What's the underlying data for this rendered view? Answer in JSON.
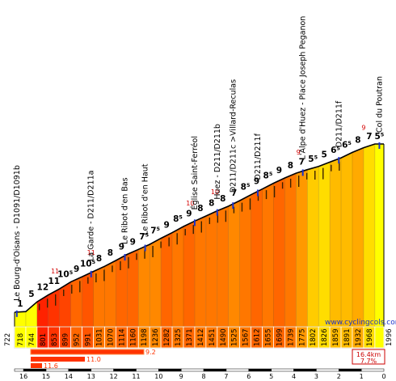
{
  "chart_data": {
    "type": "area",
    "title": "",
    "xlabel": "",
    "ylabel": "",
    "x_direction": "descending",
    "xlim": [
      16.4,
      0
    ],
    "ylim": [
      722,
      1996
    ],
    "watermark": "www.cyclingcols.com",
    "start_altitude": "722",
    "end_altitude": "1996",
    "x_ticks": [
      "16",
      "15",
      "14",
      "13",
      "12",
      "11",
      "10",
      "9",
      "8",
      "7",
      "6",
      "5",
      "4",
      "3",
      "2",
      "1",
      "0"
    ],
    "segments": [
      {
        "alt": "718",
        "km_start": 16.4,
        "grad": "1",
        "color": "#ffff00",
        "grad_color": "black"
      },
      {
        "alt": "744",
        "km_start": 15.9,
        "grad": "5",
        "color": "#ffff00",
        "grad_color": "black"
      },
      {
        "alt": "801",
        "km_start": 15.4,
        "grad": "12",
        "color": "#ff2200",
        "grad_color": "red"
      },
      {
        "alt": "853",
        "km_start": 14.9,
        "grad": "11",
        "color": "#ff3300",
        "grad_color": "black"
      },
      {
        "alt": "899",
        "km_start": 14.4,
        "grad": "10⁵",
        "color": "#ff4400",
        "grad_color": "black"
      },
      {
        "alt": "952",
        "km_start": 13.9,
        "grad": "9",
        "color": "#ff6600",
        "grad_color": "black"
      },
      {
        "alt": "991",
        "km_start": 13.4,
        "grad": "10⁵",
        "color": "#ff5500",
        "grad_color": "black"
      },
      {
        "alt": "1031",
        "km_start": 12.9,
        "grad": "8",
        "color": "#ff7700",
        "grad_color": "black"
      },
      {
        "alt": "1070",
        "km_start": 12.4,
        "grad": "8",
        "color": "#ff7700",
        "grad_color": "black"
      },
      {
        "alt": "1114",
        "km_start": 11.9,
        "grad": "9",
        "color": "#ff6600",
        "grad_color": "black"
      },
      {
        "alt": "1160",
        "km_start": 11.4,
        "grad": "9",
        "color": "#ff6600",
        "grad_color": "black"
      },
      {
        "alt": "1198",
        "km_start": 10.9,
        "grad": "7⁵",
        "color": "#ff8800",
        "grad_color": "black"
      },
      {
        "alt": "1236",
        "km_start": 10.4,
        "grad": "7⁵",
        "color": "#ff8800",
        "grad_color": "black"
      },
      {
        "alt": "1282",
        "km_start": 9.9,
        "grad": "9",
        "color": "#ff6600",
        "grad_color": "black"
      },
      {
        "alt": "1325",
        "km_start": 9.4,
        "grad": "8⁵",
        "color": "#ff7700",
        "grad_color": "black"
      },
      {
        "alt": "1371",
        "km_start": 8.9,
        "grad": "9",
        "color": "#ff6600",
        "grad_color": "black"
      },
      {
        "alt": "1412",
        "km_start": 8.4,
        "grad": "8",
        "color": "#ff7700",
        "grad_color": "black"
      },
      {
        "alt": "1451",
        "km_start": 7.9,
        "grad": "8",
        "color": "#ff7700",
        "grad_color": "black"
      },
      {
        "alt": "1490",
        "km_start": 7.4,
        "grad": "8",
        "color": "#ff7700",
        "grad_color": "black"
      },
      {
        "alt": "1525",
        "km_start": 6.9,
        "grad": "7",
        "color": "#ff8800",
        "grad_color": "black"
      },
      {
        "alt": "1567",
        "km_start": 6.4,
        "grad": "8⁵",
        "color": "#ff7700",
        "grad_color": "black"
      },
      {
        "alt": "1612",
        "km_start": 5.9,
        "grad": "9",
        "color": "#ff6600",
        "grad_color": "black"
      },
      {
        "alt": "1655",
        "km_start": 5.4,
        "grad": "8⁵",
        "color": "#ff7700",
        "grad_color": "black"
      },
      {
        "alt": "1699",
        "km_start": 4.9,
        "grad": "9",
        "color": "#ff6600",
        "grad_color": "black"
      },
      {
        "alt": "1739",
        "km_start": 4.4,
        "grad": "8",
        "color": "#ff7700",
        "grad_color": "black"
      },
      {
        "alt": "1775",
        "km_start": 3.9,
        "grad": "7",
        "color": "#ff9900",
        "grad_color": "black"
      },
      {
        "alt": "1802",
        "km_start": 3.4,
        "grad": "5⁵",
        "color": "#ffcc00",
        "grad_color": "black"
      },
      {
        "alt": "1826",
        "km_start": 2.9,
        "grad": "5",
        "color": "#ffdd00",
        "grad_color": "black"
      },
      {
        "alt": "1859",
        "km_start": 2.4,
        "grad": "6⁵",
        "color": "#ffbb00",
        "grad_color": "black"
      },
      {
        "alt": "1891",
        "km_start": 1.9,
        "grad": "6⁵",
        "color": "#ffbb00",
        "grad_color": "black"
      },
      {
        "alt": "1932",
        "km_start": 1.4,
        "grad": "8",
        "color": "#ffaa00",
        "grad_color": "black"
      },
      {
        "alt": "1968",
        "km_start": 0.9,
        "grad": "7",
        "color": "#ffdd00",
        "grad_color": "black"
      },
      {
        "alt": "",
        "km_start": 0.4,
        "grad": "5⁵",
        "color": "#ffff00",
        "grad_color": "black"
      }
    ],
    "red_marks": [
      {
        "km": 14.6,
        "label": "11"
      },
      {
        "km": 13.0,
        "label": "11"
      },
      {
        "km": 8.6,
        "label": "10"
      },
      {
        "km": 7.5,
        "label": "10"
      },
      {
        "km": 3.8,
        "label": "9"
      },
      {
        "km": 0.9,
        "label": "9"
      }
    ],
    "waypoints": [
      {
        "km": 16.3,
        "label": "Le Bourg-d'Oisans - D1091/D1091b"
      },
      {
        "km": 13.0,
        "label": "La Garde - D211/D211a"
      },
      {
        "km": 11.5,
        "label": "Le Ribot d'en Bas"
      },
      {
        "km": 10.6,
        "label": "Le Ribot d'en Haut"
      },
      {
        "km": 8.4,
        "label": "Église Saint-Ferréol"
      },
      {
        "km": 7.4,
        "label": "Huez - D211/D211b"
      },
      {
        "km": 6.7,
        "label": "D211/D211c >Villard-Reculas"
      },
      {
        "km": 5.6,
        "label": "D211/D211f"
      },
      {
        "km": 3.6,
        "label": "L'Alpe d'Huez - Place Joseph Peganon"
      },
      {
        "km": 2.0,
        "label": "D211/D211f"
      },
      {
        "km": 0.2,
        "label": "Col du Poutran"
      }
    ],
    "stats": {
      "distance": "16.4km",
      "avg_grade": "7.7%",
      "bar_values": [
        "9.2",
        "11.0",
        "11.6"
      ]
    }
  }
}
